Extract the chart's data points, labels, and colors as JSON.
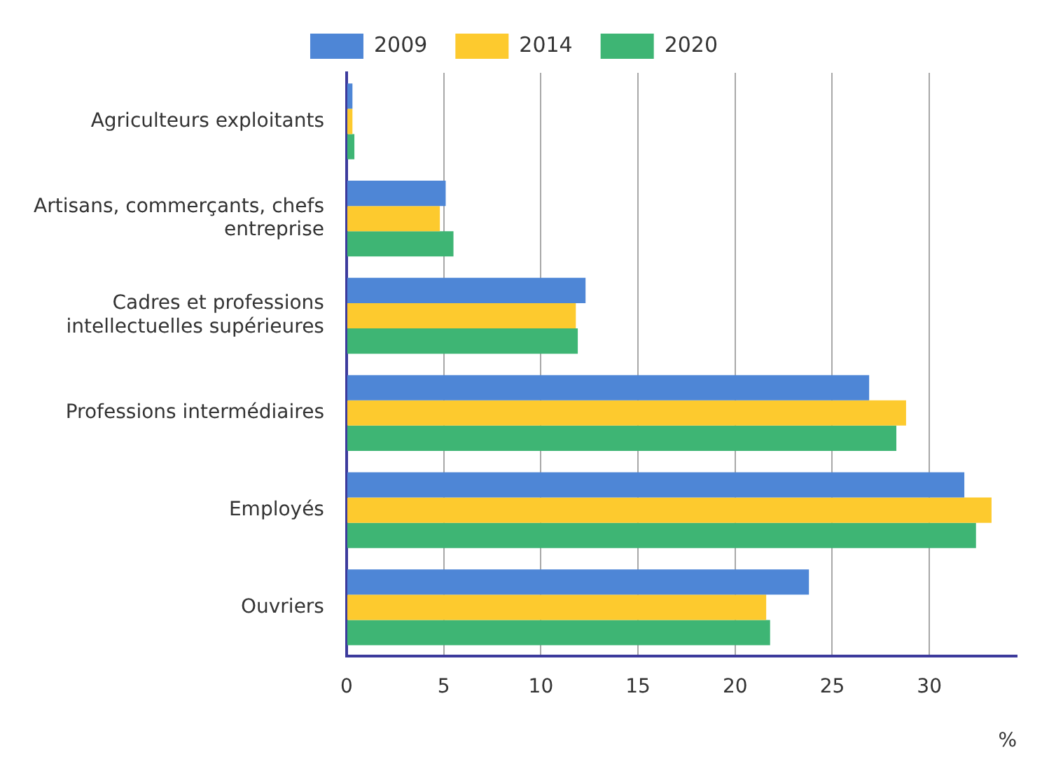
{
  "chart_data": {
    "type": "bar",
    "orientation": "horizontal",
    "xlabel": "%",
    "categories": [
      "Agriculteurs exploitants",
      "Artisans, commerçants, chefs entreprise",
      "Cadres et professions intellectuelles supérieures",
      "Professions intermédiaires",
      "Employés",
      "Ouvriers"
    ],
    "series": [
      {
        "name": "2009",
        "color": "#4e86d6",
        "values": [
          0.3,
          5.1,
          12.3,
          26.9,
          31.8,
          23.8
        ]
      },
      {
        "name": "2014",
        "color": "#fdca2e",
        "values": [
          0.3,
          4.8,
          11.8,
          28.8,
          33.2,
          21.6
        ]
      },
      {
        "name": "2020",
        "color": "#3eb574",
        "values": [
          0.4,
          5.5,
          11.9,
          28.3,
          32.4,
          21.8
        ]
      }
    ],
    "xlim": [
      0,
      34.5
    ],
    "xticks": [
      0,
      5,
      10,
      15,
      20,
      25,
      30
    ],
    "grid": "x",
    "legend": "top"
  }
}
